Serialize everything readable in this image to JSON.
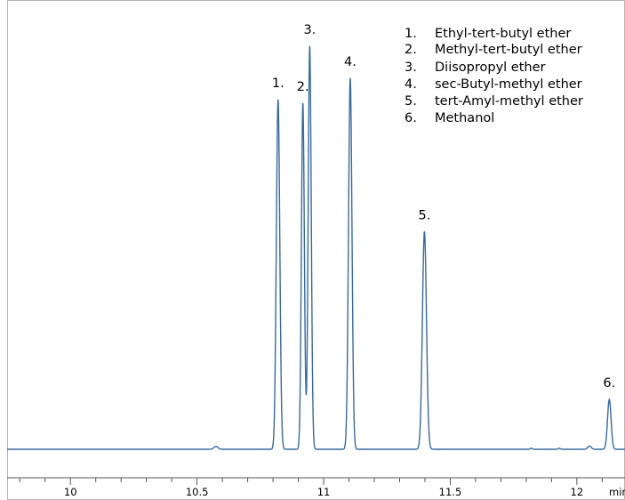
{
  "chart_data": {
    "type": "line",
    "x_unit": "min",
    "xlim": [
      9.75,
      12.19
    ],
    "ylim": [
      0,
      1.16
    ],
    "x_ticks": [
      10,
      10.5,
      11,
      11.5,
      12
    ],
    "x_tick_labels": [
      "10",
      "10.5",
      "11",
      "11.5",
      "12"
    ],
    "x_minor_step": 0.1,
    "baseline": 0.0,
    "line_color": "#3a6a9a",
    "axis_color": "#555555",
    "legend": {
      "placement": "top-right",
      "items": [
        {
          "number": "1.",
          "name": "Ethyl-tert-butyl ether"
        },
        {
          "number": "2.",
          "name": "Methyl-tert-butyl ether"
        },
        {
          "number": "3.",
          "name": "Diisopropyl ether"
        },
        {
          "number": "4.",
          "name": "sec-Butyl-methyl ether"
        },
        {
          "number": "5.",
          "name": "tert-Amyl-methyl ether"
        },
        {
          "number": "6.",
          "name": "Methanol"
        }
      ]
    },
    "peaks": [
      {
        "label": "1.",
        "rt": 10.82,
        "height": 0.98,
        "width": 0.0068
      },
      {
        "label": "2.",
        "rt": 10.918,
        "height": 0.97,
        "width": 0.0058
      },
      {
        "label": "3.",
        "rt": 10.945,
        "height": 1.13,
        "width": 0.006
      },
      {
        "label": "4.",
        "rt": 11.105,
        "height": 1.04,
        "width": 0.0068
      },
      {
        "label": "5.",
        "rt": 11.398,
        "height": 0.61,
        "width": 0.008
      },
      {
        "label": "6.",
        "rt": 12.128,
        "height": 0.14,
        "width": 0.007
      }
    ],
    "minor_peaks": [
      {
        "rt": 10.575,
        "height": 0.008,
        "width": 0.008
      },
      {
        "rt": 12.05,
        "height": 0.009,
        "width": 0.007
      },
      {
        "rt": 11.82,
        "height": 0.003,
        "width": 0.004
      },
      {
        "rt": 11.93,
        "height": 0.003,
        "width": 0.004
      }
    ]
  }
}
